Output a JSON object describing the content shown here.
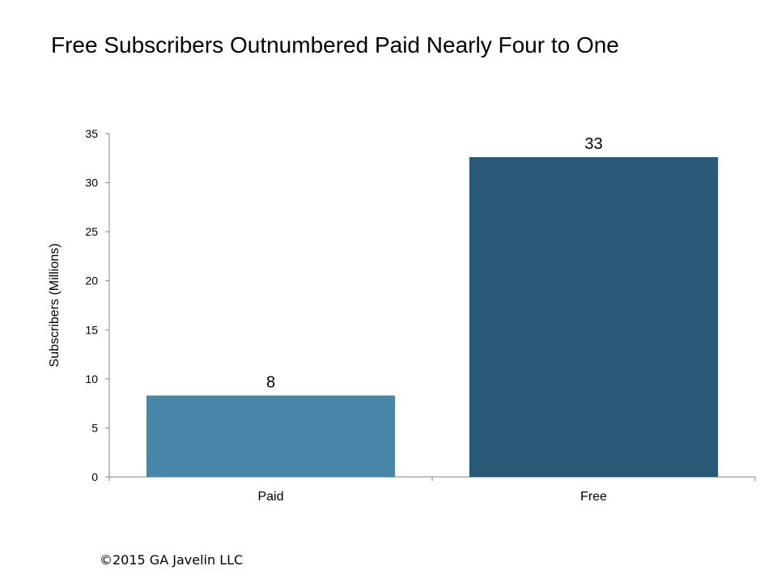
{
  "chart_data": {
    "type": "bar",
    "title": "Free Subscribers Outnumbered Paid Nearly Four to One",
    "xlabel": "",
    "ylabel": "Subscribers (Millions)",
    "categories": [
      "Paid",
      "Free"
    ],
    "values": [
      8.3,
      32.6
    ],
    "data_labels": [
      "8",
      "33"
    ],
    "ylim": [
      0,
      35
    ],
    "yticks": [
      0,
      5,
      10,
      15,
      20,
      25,
      30,
      35
    ],
    "grid": false,
    "legend": "none",
    "colors": [
      "#4886AA",
      "#285A78"
    ]
  },
  "footer": "©2015 GA Javelin LLC"
}
